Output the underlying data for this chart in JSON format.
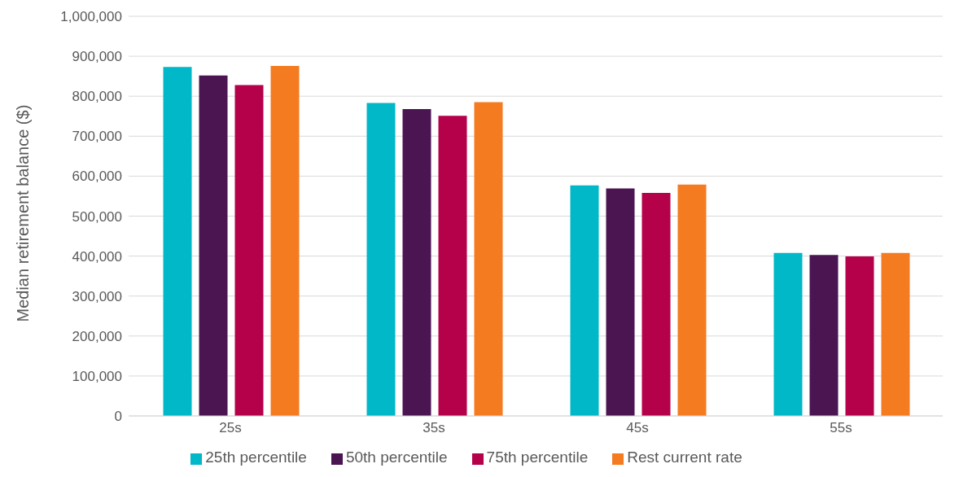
{
  "chart_data": {
    "type": "bar",
    "ylabel": "Median retirement balance ($)",
    "categories": [
      "25s",
      "35s",
      "45s",
      "55s"
    ],
    "series": [
      {
        "name": "25th percentile",
        "color": "#00b8c8",
        "values": [
          873000,
          783000,
          577000,
          408000
        ]
      },
      {
        "name": "50th percentile",
        "color": "#4b1551",
        "values": [
          852000,
          768000,
          569000,
          403000
        ]
      },
      {
        "name": "75th percentile",
        "color": "#b5004a",
        "values": [
          828000,
          751000,
          558000,
          399000
        ]
      },
      {
        "name": "Rest current rate",
        "color": "#f47b20",
        "values": [
          876000,
          785000,
          579000,
          408000
        ]
      }
    ],
    "ylim": [
      0,
      1000000
    ],
    "yticks": [
      0,
      {
        "value": 100000,
        "label": "100,000"
      },
      {
        "value": 200000,
        "label": "200,000"
      },
      {
        "value": 300000,
        "label": "300,000"
      },
      {
        "value": 400000,
        "label": "400,000"
      },
      {
        "value": 500000,
        "label": "500,000"
      },
      {
        "value": 600000,
        "label": "600,000"
      },
      {
        "value": 700000,
        "label": "700,000"
      },
      {
        "value": 800000,
        "label": "800,000"
      },
      {
        "value": 900000,
        "label": "900,000"
      },
      {
        "value": 1000000,
        "label": "1,000,000"
      }
    ],
    "grid": "y",
    "legend": "bottom"
  }
}
